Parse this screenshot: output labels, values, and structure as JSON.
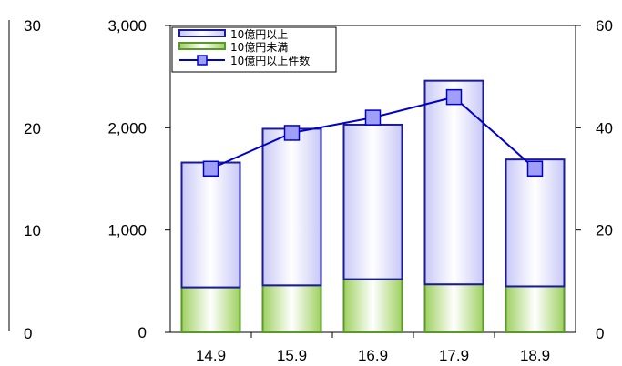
{
  "chart_data": {
    "type": "bar",
    "categories": [
      "14.9",
      "15.9",
      "16.9",
      "17.9",
      "18.9"
    ],
    "series": [
      {
        "name": "10億円以上",
        "kind": "bar-stack-top",
        "values": [
          1220,
          1530,
          1510,
          1990,
          1240
        ],
        "color": "#1b1b9a"
      },
      {
        "name": "10億円未満",
        "kind": "bar-stack-bottom",
        "values": [
          440,
          460,
          520,
          470,
          450
        ],
        "color": "#5a9a2a"
      },
      {
        "name": "10億円以上件数",
        "kind": "line",
        "axis": "right",
        "values": [
          32,
          39,
          42,
          46,
          32
        ],
        "color": "#0000cc"
      }
    ],
    "y_left": {
      "min": 0,
      "max": 3000,
      "ticks": [
        0,
        1000,
        2000,
        3000
      ],
      "tick_labels": [
        "0",
        "1,000",
        "2,000",
        "3,000"
      ]
    },
    "y_right": {
      "min": 0,
      "max": 60,
      "ticks": [
        20,
        40,
        60
      ],
      "tick_labels": [
        "20",
        "40",
        "60"
      ],
      "zero_label": "0"
    },
    "y_far_left": {
      "tick_labels": [
        "0",
        "10",
        "20",
        "30"
      ]
    },
    "legend_position": "top-left"
  }
}
